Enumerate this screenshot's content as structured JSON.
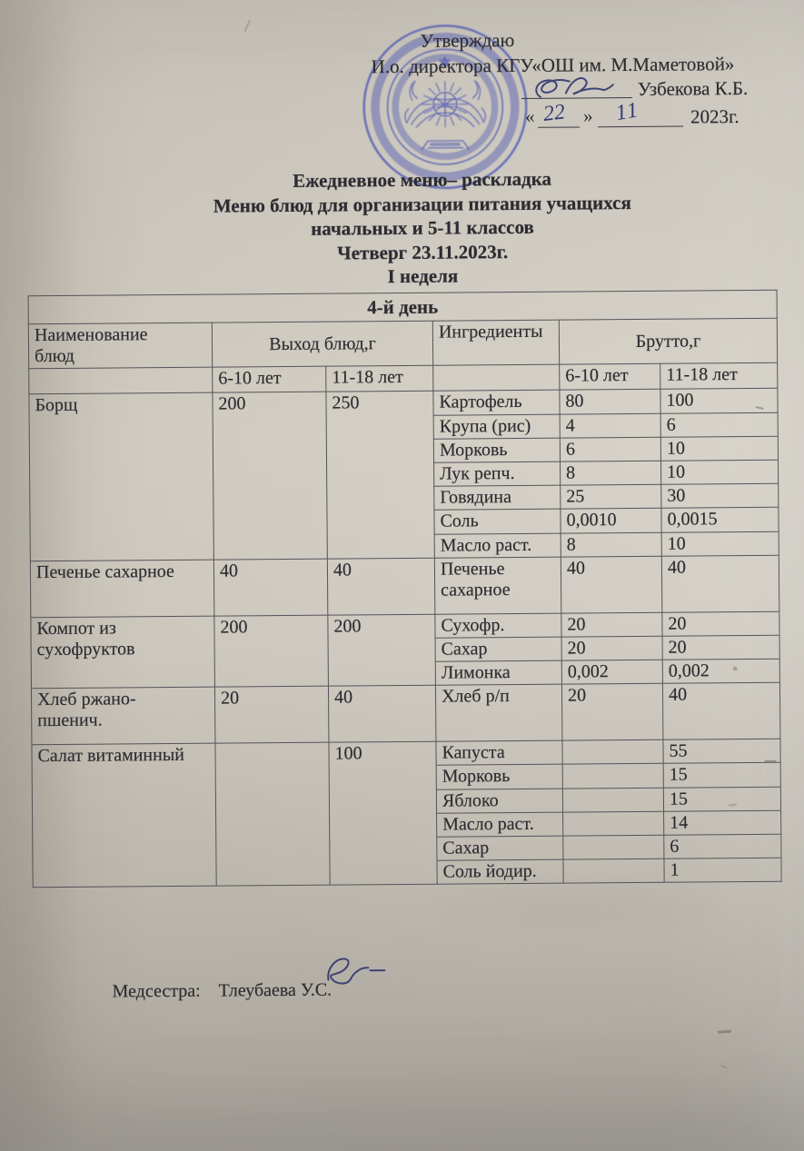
{
  "approval": {
    "approve_word": "Утверждаю",
    "director_line": "И.о. директора  КГУ«ОШ им. М.Маметовой»",
    "director_name": "Узбекова К.Б.",
    "quote_open": "«",
    "quote_close": "»",
    "date_day": "22",
    "date_month": "11",
    "date_year": "2023г."
  },
  "title": {
    "line1": "Ежедневное меню– раскладка",
    "line2": "Меню блюд для организации питания учащихся",
    "line3": "начальных и  5-11 классов",
    "line4": "Четверг  23.11.2023г.",
    "line5": "I неделя"
  },
  "table": {
    "day_header": "4-й день",
    "header": {
      "col_dish": "Наименование\nблюд",
      "col_output": "Выход блюд,г",
      "col_ingredients": "Ингредиенты",
      "col_brutto": "Брутто,г",
      "age_young": "6-10 лет",
      "age_old": "11-18 лет"
    },
    "dishes": [
      {
        "name": "Борщ",
        "out_young": "200",
        "out_old": "250",
        "ingredients": [
          {
            "name": "Картофель",
            "brutto_young": "80",
            "brutto_old": "100"
          },
          {
            "name": "Крупа (рис)",
            "brutto_young": "4",
            "brutto_old": "6"
          },
          {
            "name": "Морковь",
            "brutto_young": "6",
            "brutto_old": "10"
          },
          {
            "name": "Лук репч.",
            "brutto_young": "8",
            "brutto_old": "10"
          },
          {
            "name": "Говядина",
            "brutto_young": "25",
            "brutto_old": "30"
          },
          {
            "name": "Соль",
            "brutto_young": "0,0010",
            "brutto_old": "0,0015"
          },
          {
            "name": "Масло раст.",
            "brutto_young": "8",
            "brutto_old": "10"
          }
        ]
      },
      {
        "name": " Печенье сахарное",
        "out_young": "40",
        "out_old": "40",
        "ingredients": [
          {
            "name": "Печенье\nсахарное",
            "brutto_young": "40",
            "brutto_old": "40"
          }
        ]
      },
      {
        "name": "Компот из\nсухофруктов",
        "out_young": "200",
        "out_old": "200",
        "ingredients": [
          {
            "name": "Сухофр.",
            "brutto_young": "20",
            "brutto_old": "20"
          },
          {
            "name": "Сахар",
            "brutto_young": "20",
            "brutto_old": "20"
          },
          {
            "name": "Лимонка",
            "brutto_young": "0,002",
            "brutto_old": "0,002"
          }
        ]
      },
      {
        "name": "Хлеб ржано-\nпшенич.",
        "out_young": "20",
        "out_old": "40",
        "ingredients": [
          {
            "name": "Хлеб р/п",
            "brutto_young": "20",
            "brutto_old": "40"
          }
        ]
      },
      {
        "name": "Салат витаминный",
        "out_young": "",
        "out_old": "100",
        "ingredients": [
          {
            "name": "Капуста",
            "brutto_young": "",
            "brutto_old": "55"
          },
          {
            "name": "Морковь",
            "brutto_young": "",
            "brutto_old": "15"
          },
          {
            "name": "Яблоко",
            "brutto_young": "",
            "brutto_old": "15"
          },
          {
            "name": "Масло раст.",
            "brutto_young": "",
            "brutto_old": "14"
          },
          {
            "name": "Сахар",
            "brutto_young": "",
            "brutto_old": "6"
          },
          {
            "name": "Соль йодир.",
            "brutto_young": "",
            "brutto_old": "1"
          }
        ]
      }
    ]
  },
  "footer": {
    "role_label": "Медсестра:",
    "nurse_name": "Тлеубаева У.С."
  },
  "stamp": {
    "color": "#4752b4",
    "emblem": "kazakhstan-coat-of-arms"
  },
  "colors": {
    "paper_light": "#cfcabf",
    "paper_dark": "#a4a09a",
    "ink": "#2c2c31",
    "handwriting_ink": "#333a74",
    "table_border": "#55535a"
  }
}
